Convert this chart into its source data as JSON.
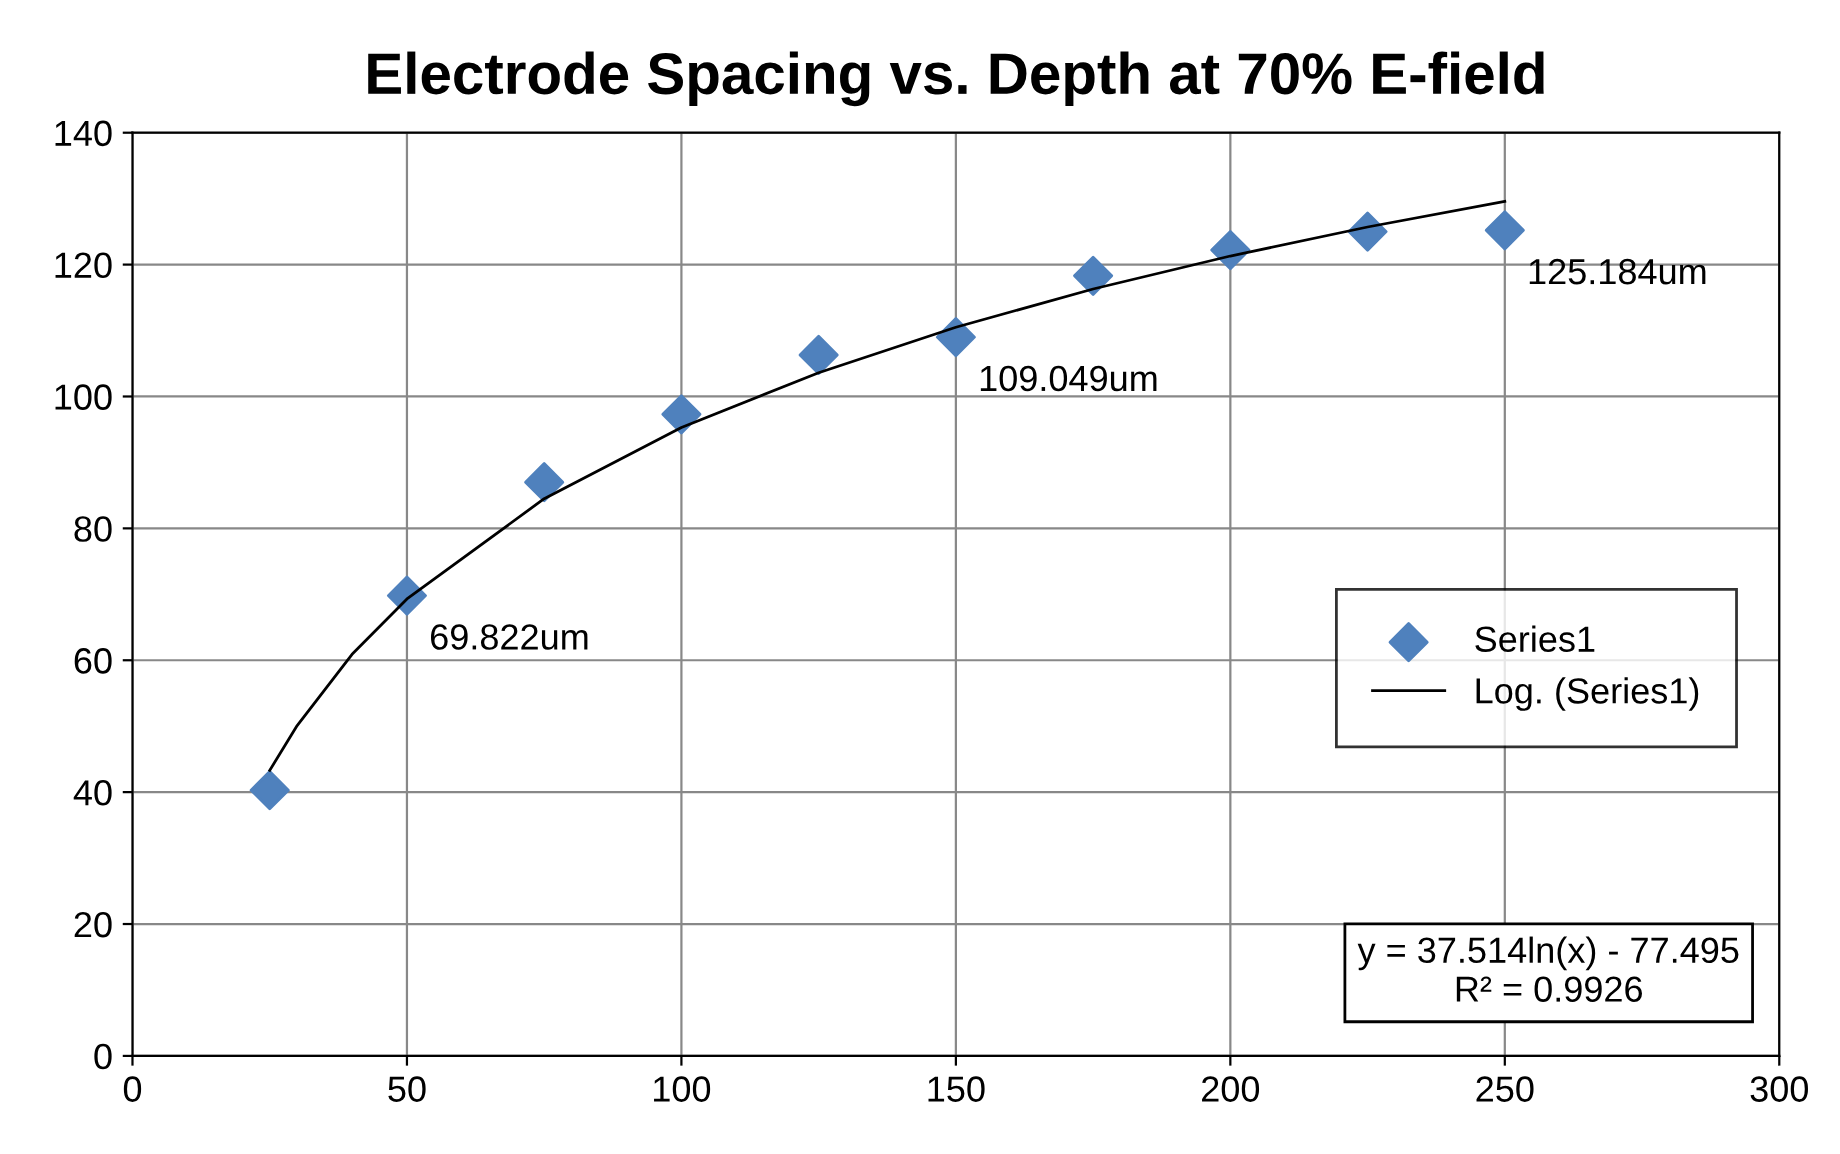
{
  "chart_data": {
    "type": "scatter",
    "title": "Electrode Spacing vs. Depth at 70% E-field",
    "x": [
      25,
      50,
      75,
      100,
      125,
      150,
      175,
      200,
      225,
      250
    ],
    "series": [
      {
        "name": "Series1",
        "color": "#4f81bd",
        "marker": "diamond",
        "values": [
          40.3,
          69.8,
          87.0,
          97.3,
          106.3,
          109.0,
          118.3,
          122.2,
          125.0,
          125.2
        ]
      },
      {
        "name": "Log. (Series1)",
        "type": "line",
        "color": "#000000",
        "marker": "none",
        "line_style": "solid",
        "x": [
          25,
          30,
          40,
          50,
          75,
          100,
          125,
          150,
          175,
          200,
          225,
          250
        ],
        "values": [
          43.3,
          50.1,
          60.9,
          69.3,
          84.5,
          95.3,
          103.6,
          110.5,
          116.3,
          121.3,
          125.7,
          129.6
        ]
      }
    ],
    "annotations": [
      {
        "text": "69.822um",
        "x": 50,
        "y": 69.8
      },
      {
        "text": "109.049um",
        "x": 150,
        "y": 109.0
      },
      {
        "text": "125.184um",
        "x": 250,
        "y": 125.2
      },
      "y = 37.514ln(x) - 77.495\nR² = 0.9926"
    ],
    "xlim": [
      0,
      300
    ],
    "xticks": [
      0,
      50,
      100,
      150,
      200,
      250,
      300
    ],
    "ylim": [
      0,
      140
    ],
    "yticks": [
      0,
      20,
      40,
      60,
      80,
      100,
      120,
      140
    ],
    "grid": true,
    "legend": "right"
  }
}
